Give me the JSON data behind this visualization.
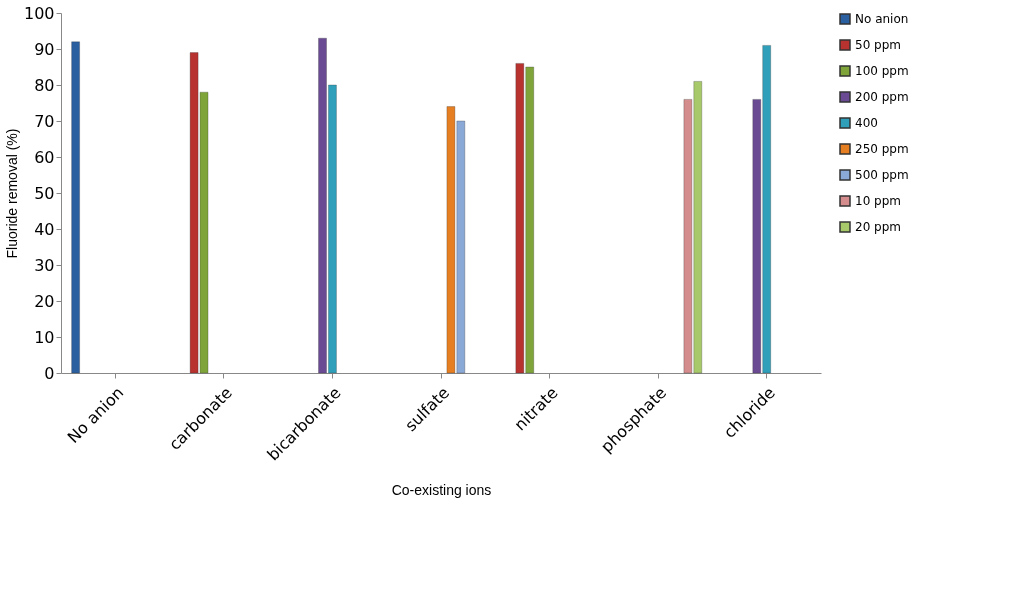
{
  "chart_data": {
    "type": "bar",
    "xlabel": "Co-existing ions",
    "ylabel": "Fluoride removal (%)",
    "categories": [
      "No anion",
      "carbonate",
      "bicarbonate",
      "sulfate",
      "nitrate",
      "phosphate",
      "chloride"
    ],
    "series": [
      {
        "name": "No anion",
        "color": "#2a5fa0",
        "values": [
          92,
          null,
          null,
          null,
          null,
          null,
          null
        ]
      },
      {
        "name": "50 ppm",
        "color": "#b83230",
        "values": [
          null,
          89,
          null,
          null,
          86,
          null,
          null
        ]
      },
      {
        "name": "100 ppm",
        "color": "#7fa53a",
        "values": [
          null,
          78,
          null,
          null,
          85,
          null,
          null
        ]
      },
      {
        "name": "200 ppm",
        "color": "#6b4a94",
        "values": [
          null,
          null,
          93,
          null,
          null,
          null,
          76
        ]
      },
      {
        "name": "400",
        "color": "#2f9fba",
        "values": [
          null,
          null,
          80,
          null,
          null,
          null,
          91
        ]
      },
      {
        "name": "250 ppm",
        "color": "#e67e22",
        "values": [
          null,
          null,
          null,
          74,
          null,
          null,
          null
        ]
      },
      {
        "name": "500 ppm",
        "color": "#8aa9d6",
        "values": [
          null,
          null,
          null,
          70,
          null,
          null,
          null
        ]
      },
      {
        "name": "10 ppm",
        "color": "#d48c8c",
        "values": [
          null,
          null,
          null,
          null,
          null,
          76,
          null
        ]
      },
      {
        "name": "20 ppm",
        "color": "#a8c96a",
        "values": [
          null,
          null,
          null,
          null,
          null,
          81,
          null
        ]
      }
    ],
    "ylim": [
      0,
      100
    ],
    "yticks": [
      0,
      10,
      20,
      30,
      40,
      50,
      60,
      70,
      80,
      90,
      100
    ],
    "grid": false,
    "legend": "right"
  }
}
